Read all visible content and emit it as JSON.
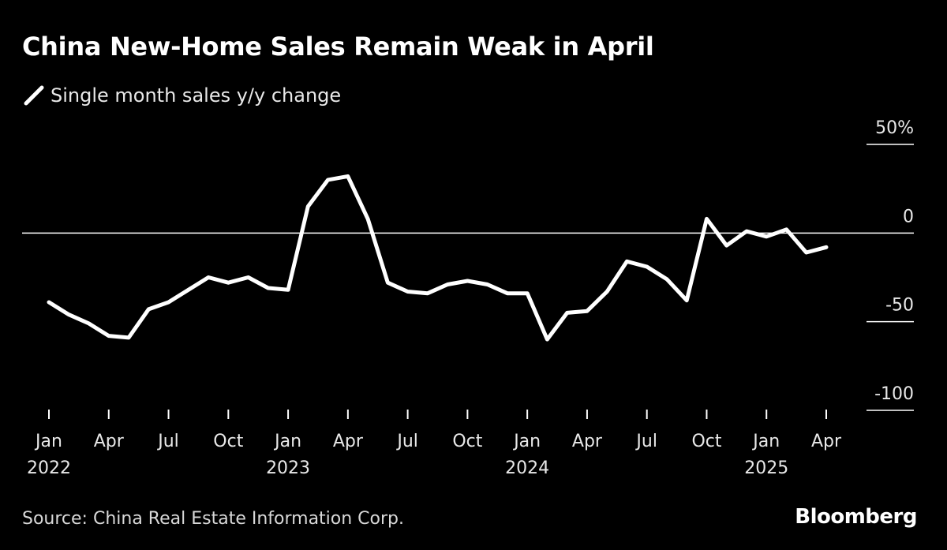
{
  "chart_data": {
    "type": "line",
    "title": "China New-Home Sales Remain Weak in April",
    "subtitle": "",
    "series": [
      {
        "name": "Single month sales y/y change",
        "color": "#ffffff",
        "x": [
          "2022-01",
          "2022-02",
          "2022-03",
          "2022-04",
          "2022-05",
          "2022-06",
          "2022-07",
          "2022-08",
          "2022-09",
          "2022-10",
          "2022-11",
          "2022-12",
          "2023-01",
          "2023-02",
          "2023-03",
          "2023-04",
          "2023-05",
          "2023-06",
          "2023-07",
          "2023-08",
          "2023-09",
          "2023-10",
          "2023-11",
          "2023-12",
          "2024-01",
          "2024-02",
          "2024-03",
          "2024-04",
          "2024-05",
          "2024-06",
          "2024-07",
          "2024-08",
          "2024-09",
          "2024-10",
          "2024-11",
          "2024-12",
          "2025-01",
          "2025-02",
          "2025-03",
          "2025-04"
        ],
        "values": [
          -39,
          -46,
          -51,
          -58,
          -59,
          -43,
          -39,
          -32,
          -25,
          -28,
          -25,
          -31,
          -32,
          15,
          30,
          32,
          8,
          -28,
          -33,
          -34,
          -29,
          -27,
          -29,
          -34,
          -34,
          -60,
          -45,
          -44,
          -33,
          -16,
          -19,
          -26,
          -38,
          8,
          -7,
          1,
          -2,
          2,
          -11,
          -8
        ]
      }
    ],
    "ylim": [
      -100,
      50
    ],
    "yticks": [
      50,
      0,
      -50,
      -100
    ],
    "ytick_labels": [
      "50%",
      "0",
      "-50",
      "-100"
    ],
    "xtick_labels": [
      {
        "month": "Jan",
        "year": "2022"
      },
      {
        "month": "Apr",
        "year": ""
      },
      {
        "month": "Jul",
        "year": ""
      },
      {
        "month": "Oct",
        "year": ""
      },
      {
        "month": "Jan",
        "year": "2023"
      },
      {
        "month": "Apr",
        "year": ""
      },
      {
        "month": "Jul",
        "year": ""
      },
      {
        "month": "Oct",
        "year": ""
      },
      {
        "month": "Jan",
        "year": "2024"
      },
      {
        "month": "Apr",
        "year": ""
      },
      {
        "month": "Jul",
        "year": ""
      },
      {
        "month": "Oct",
        "year": ""
      },
      {
        "month": "Jan",
        "year": "2025"
      },
      {
        "month": "Apr",
        "year": ""
      }
    ],
    "zero_line": true,
    "grid": false,
    "legend_position": "top-left",
    "source": "Source: China Real Estate Information Corp.",
    "brand": "Bloomberg"
  }
}
